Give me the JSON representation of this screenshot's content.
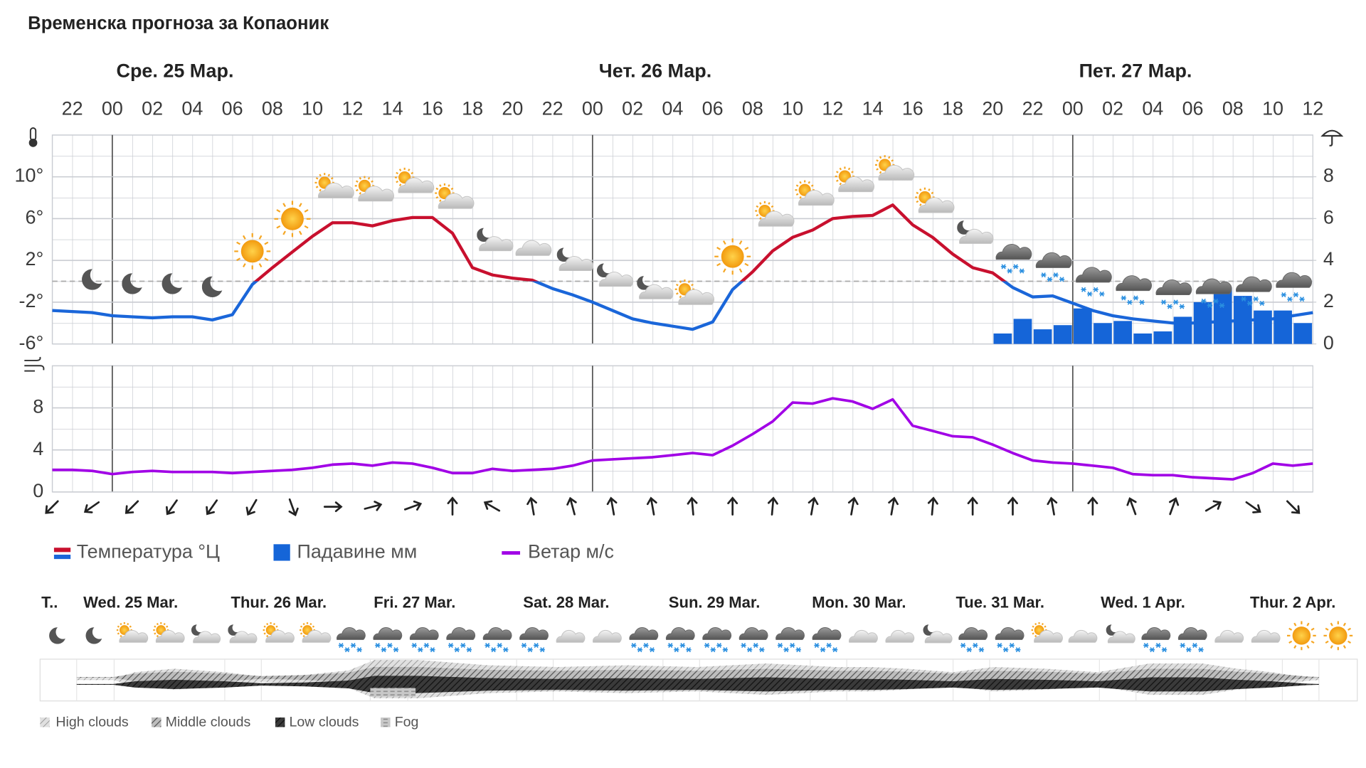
{
  "title": "Временска прогноза за Копаоник",
  "chart_data": [
    {
      "type": "line",
      "day_labels": [
        "Сре. 25 Мар.",
        "Чет. 26 Мар.",
        "Пет. 27 Мар."
      ],
      "day_breaks": [
        0,
        24,
        48
      ],
      "xlim": [
        -3,
        60
      ],
      "xticks": [
        {
          "value": -2,
          "label": "22"
        },
        {
          "value": 0,
          "label": "00"
        },
        {
          "value": 2,
          "label": "02"
        },
        {
          "value": 4,
          "label": "04"
        },
        {
          "value": 6,
          "label": "06"
        },
        {
          "value": 8,
          "label": "08"
        },
        10,
        12,
        14,
        16,
        18,
        20,
        22,
        {
          "value": 24,
          "label": "00"
        },
        {
          "value": 26,
          "label": "02"
        },
        {
          "value": 28,
          "label": "04"
        },
        {
          "value": 30,
          "label": "06"
        },
        {
          "value": 32,
          "label": "08"
        },
        {
          "value": 34,
          "label": "10"
        },
        {
          "value": 36,
          "label": "12"
        },
        {
          "value": 38,
          "label": "14"
        },
        {
          "value": 40,
          "label": "16"
        },
        {
          "value": 42,
          "label": "18"
        },
        {
          "value": 44,
          "label": "20"
        },
        {
          "value": 46,
          "label": "22"
        },
        {
          "value": 48,
          "label": "00"
        },
        {
          "value": 50,
          "label": "02"
        },
        {
          "value": 52,
          "label": "04"
        },
        {
          "value": 54,
          "label": "06"
        },
        {
          "value": 56,
          "label": "08"
        },
        {
          "value": 58,
          "label": "10"
        },
        {
          "value": 60,
          "label": "12"
        }
      ],
      "x": [
        -3,
        -2,
        -1,
        0,
        1,
        2,
        3,
        4,
        5,
        6,
        7,
        8,
        9,
        10,
        11,
        12,
        13,
        14,
        15,
        16,
        17,
        18,
        19,
        20,
        21,
        22,
        23,
        24,
        25,
        26,
        27,
        28,
        29,
        30,
        31,
        32,
        33,
        34,
        35,
        36,
        37,
        38,
        39,
        40,
        41,
        42,
        43,
        44,
        45,
        46,
        47,
        48,
        49,
        50,
        51,
        52,
        53,
        54,
        55,
        56,
        57,
        58,
        59,
        60
      ],
      "ylim": [
        -6,
        14
      ],
      "yticks": [
        {
          "value": -6,
          "label": "-6°"
        },
        {
          "value": -2,
          "label": "-2°"
        },
        {
          "value": 2,
          "label": "2°"
        },
        {
          "value": 6,
          "label": "6°"
        },
        {
          "value": 10,
          "label": "10°"
        }
      ],
      "y2lim": [
        0,
        10
      ],
      "y2ticks": [
        0,
        2,
        4,
        6,
        8
      ],
      "zero_line": true,
      "grid": true,
      "series": [
        {
          "name": "Температура °Ц",
          "type": "line",
          "color": "#1a66d9",
          "color_above_zero": "#c8102e",
          "values": [
            -2.8,
            -2.9,
            -3.0,
            -3.3,
            -3.4,
            -3.5,
            -3.4,
            -3.4,
            -3.7,
            -3.2,
            -0.3,
            1.3,
            2.8,
            4.3,
            5.6,
            5.6,
            5.3,
            5.8,
            6.1,
            6.1,
            4.6,
            1.3,
            0.6,
            0.3,
            0.1,
            -0.7,
            -1.3,
            -2.0,
            -2.8,
            -3.6,
            -4.0,
            -4.3,
            -4.6,
            -3.9,
            -0.8,
            0.9,
            2.9,
            4.2,
            4.9,
            6.0,
            6.2,
            6.3,
            7.3,
            5.4,
            4.2,
            2.6,
            1.3,
            0.8,
            -0.6,
            -1.5,
            -1.4,
            -2.1,
            -2.8,
            -3.3,
            -3.6,
            -3.8,
            -4.0,
            -4.0,
            -3.9,
            -3.8,
            -3.7,
            -3.6,
            -3.3,
            -3.0
          ]
        },
        {
          "name": "Падавине мм",
          "type": "bar",
          "axis": "y2",
          "color": "#1565d8",
          "x": [
            44,
            45,
            46,
            47,
            48,
            49,
            50,
            51,
            52,
            53,
            54,
            55,
            56,
            57,
            58,
            59
          ],
          "values": [
            0.5,
            1.2,
            0.7,
            0.9,
            1.7,
            1.0,
            1.1,
            0.5,
            0.6,
            1.3,
            2.0,
            2.7,
            2.3,
            1.6,
            1.6,
            1.0
          ]
        }
      ]
    },
    {
      "type": "line",
      "xlim": [
        -3,
        60
      ],
      "x": [
        -3,
        -2,
        -1,
        0,
        1,
        2,
        3,
        4,
        5,
        6,
        7,
        8,
        9,
        10,
        11,
        12,
        13,
        14,
        15,
        16,
        17,
        18,
        19,
        20,
        21,
        22,
        23,
        24,
        25,
        26,
        27,
        28,
        29,
        30,
        31,
        32,
        33,
        34,
        35,
        36,
        37,
        38,
        39,
        40,
        41,
        42,
        43,
        44,
        45,
        46,
        47,
        48,
        49,
        50,
        51,
        52,
        53,
        54,
        55,
        56,
        57,
        58,
        59,
        60
      ],
      "ylim": [
        0,
        12
      ],
      "yticks": [
        0,
        4,
        8
      ],
      "grid": true,
      "series": [
        {
          "name": "Ветар м/с",
          "color": "#a100e6",
          "values": [
            2.1,
            2.1,
            2.0,
            1.7,
            1.9,
            2.0,
            1.9,
            1.9,
            1.9,
            1.8,
            1.9,
            2.0,
            2.1,
            2.3,
            2.6,
            2.7,
            2.5,
            2.8,
            2.7,
            2.3,
            1.8,
            1.8,
            2.2,
            2.0,
            2.1,
            2.2,
            2.5,
            3.0,
            3.1,
            3.2,
            3.3,
            3.5,
            3.7,
            3.5,
            4.4,
            5.5,
            6.7,
            8.5,
            8.4,
            8.9,
            8.6,
            7.9,
            8.8,
            6.3,
            5.8,
            5.3,
            5.2,
            4.5,
            3.7,
            3.0,
            2.8,
            2.7,
            2.5,
            2.3,
            1.7,
            1.6,
            1.6,
            1.4,
            1.3,
            1.2,
            1.8,
            2.7,
            2.5,
            2.7
          ]
        }
      ],
      "arrow_x": [
        -3,
        -1,
        1,
        3,
        5,
        7,
        9,
        11,
        13,
        15,
        17,
        19,
        21,
        23,
        25,
        27,
        29,
        31,
        33,
        35,
        37,
        39,
        41,
        43,
        45,
        47,
        49,
        51,
        53,
        55,
        57,
        59
      ],
      "arrow_direction_deg": [
        225,
        235,
        225,
        215,
        215,
        210,
        160,
        90,
        75,
        70,
        0,
        300,
        350,
        345,
        350,
        350,
        355,
        0,
        5,
        10,
        10,
        10,
        5,
        0,
        0,
        350,
        0,
        340,
        20,
        60,
        125,
        135
      ]
    }
  ],
  "outlook": {
    "days": [
      "T..",
      "Wed. 25 Mar.",
      "Thur. 26 Mar.",
      "Fri. 27 Mar.",
      "Sat. 28 Mar.",
      "Sun. 29 Mar.",
      "Mon. 30 Mar.",
      "Tue. 31 Mar.",
      "Wed. 1 Apr.",
      "Thur. 2 Apr."
    ],
    "cloud_legend": [
      "High clouds",
      "Middle clouds",
      "Low clouds",
      "Fog"
    ]
  }
}
